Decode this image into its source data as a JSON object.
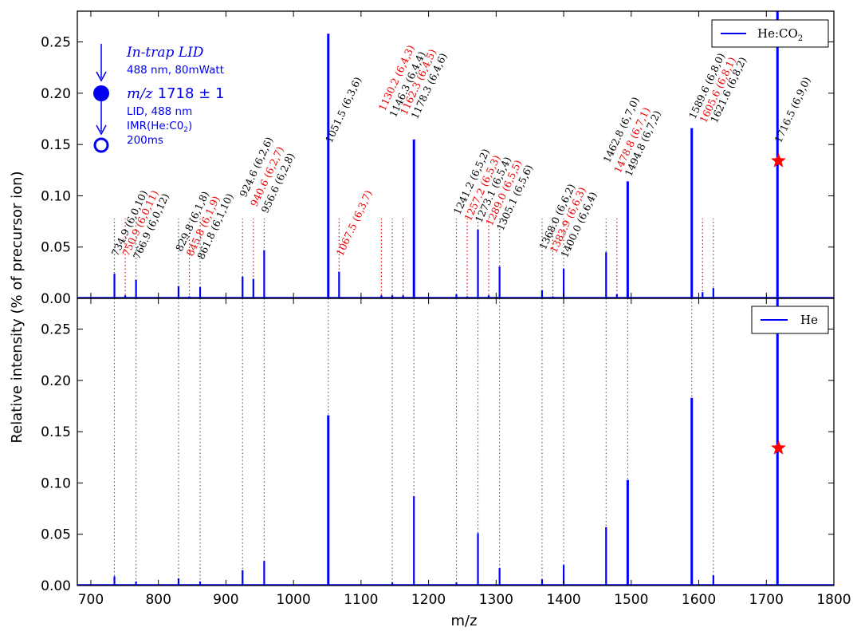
{
  "chart_data": {
    "type": "line",
    "xlabel": "m/z",
    "ylabel": "Relative intensity (% of precursor ion)",
    "xlim": [
      680,
      1800
    ],
    "ylim": [
      0,
      0.28
    ],
    "x_ticks": [
      "700",
      "800",
      "900",
      "1000",
      "1100",
      "1200",
      "1300",
      "1400",
      "1500",
      "1600",
      "1700",
      "1800"
    ],
    "y_ticks": [
      "0.00",
      "0.05",
      "0.10",
      "0.15",
      "0.20",
      "0.25"
    ],
    "colors": {
      "spectrum": "#0000ff",
      "annotation_black": "#000000",
      "annotation_red": "#ee0000",
      "marker": "#ff0000"
    },
    "inset": {
      "line1": "In-trap LID",
      "line2": "488 nm, 80mWatt",
      "line3_italic": "m/z",
      "line3_rest": "1718 ± 1",
      "line4": "LID, 488 nm",
      "line5": "IMR(He:C0",
      "line5_sub": "2",
      "line5_end": ")",
      "line6": "200ms"
    },
    "panels": [
      {
        "name": "top",
        "legend": {
          "label": "He:CO",
          "sub": "2",
          "placement": "top-right"
        },
        "star": {
          "x": 1718,
          "y": 0.134
        },
        "peaks": [
          {
            "x": 734.9,
            "y": 0.024
          },
          {
            "x": 750.9,
            "y": 0.003
          },
          {
            "x": 766.9,
            "y": 0.018
          },
          {
            "x": 829.8,
            "y": 0.012
          },
          {
            "x": 845.8,
            "y": 0.002
          },
          {
            "x": 861.8,
            "y": 0.011
          },
          {
            "x": 924.6,
            "y": 0.021
          },
          {
            "x": 940.6,
            "y": 0.019
          },
          {
            "x": 956.6,
            "y": 0.047
          },
          {
            "x": 1051.5,
            "y": 0.258
          },
          {
            "x": 1067.5,
            "y": 0.026
          },
          {
            "x": 1130.2,
            "y": 0.003
          },
          {
            "x": 1146.3,
            "y": 0.003
          },
          {
            "x": 1162.3,
            "y": 0.003
          },
          {
            "x": 1178.3,
            "y": 0.155
          },
          {
            "x": 1241.2,
            "y": 0.004
          },
          {
            "x": 1257.2,
            "y": 0.002
          },
          {
            "x": 1273.1,
            "y": 0.067
          },
          {
            "x": 1289.0,
            "y": 0.003
          },
          {
            "x": 1305.1,
            "y": 0.031
          },
          {
            "x": 1368.0,
            "y": 0.008
          },
          {
            "x": 1383.9,
            "y": 0.002
          },
          {
            "x": 1400.0,
            "y": 0.029
          },
          {
            "x": 1462.8,
            "y": 0.045
          },
          {
            "x": 1478.8,
            "y": 0.004
          },
          {
            "x": 1494.8,
            "y": 0.114
          },
          {
            "x": 1589.6,
            "y": 0.166
          },
          {
            "x": 1605.6,
            "y": 0.006
          },
          {
            "x": 1621.6,
            "y": 0.01
          },
          {
            "x": 1716.5,
            "y": 0.28
          }
        ],
        "annotations": [
          {
            "x": 734.9,
            "text": "734.9 (6,0,10)",
            "color": "black"
          },
          {
            "x": 750.9,
            "text": "750.9 (6,0,11)",
            "color": "red"
          },
          {
            "x": 766.9,
            "text": "766.9 (6,0,12)",
            "color": "black"
          },
          {
            "x": 829.8,
            "text": "829.8 (6,1,8)",
            "color": "black"
          },
          {
            "x": 845.8,
            "text": "845.8 (6,1,9)",
            "color": "red"
          },
          {
            "x": 861.8,
            "text": "861.8 (6,1,10)",
            "color": "black"
          },
          {
            "x": 924.6,
            "text": "924.6 (6,2,6)",
            "color": "black"
          },
          {
            "x": 940.6,
            "text": "940.6 (6,2,7)",
            "color": "red"
          },
          {
            "x": 956.6,
            "text": "956.6 (6,2,8)",
            "color": "black"
          },
          {
            "x": 1051.5,
            "text": "1051.5  (6,3,6)",
            "color": "black"
          },
          {
            "x": 1067.5,
            "text": "1067.5 (6,3,7)",
            "color": "red"
          },
          {
            "x": 1130.2,
            "text": "1130.2 (6,4,3)",
            "color": "red"
          },
          {
            "x": 1146.3,
            "text": "1146.3 (6,4,4)",
            "color": "black"
          },
          {
            "x": 1162.3,
            "text": "1162.3 (6,4,5)",
            "color": "red"
          },
          {
            "x": 1178.3,
            "text": "1178.3 (6,4,6)",
            "color": "black"
          },
          {
            "x": 1241.2,
            "text": "1241.2 (6,5,2)",
            "color": "black"
          },
          {
            "x": 1257.2,
            "text": "1257.2 (6,5,3)",
            "color": "red"
          },
          {
            "x": 1273.1,
            "text": "1273.1 (6,5,4)",
            "color": "black"
          },
          {
            "x": 1289.0,
            "text": "1289.0 (6,5,5)",
            "color": "red"
          },
          {
            "x": 1305.1,
            "text": "1305.1 (6,5,6)",
            "color": "black"
          },
          {
            "x": 1368.0,
            "text": "1368.0 (6,6,2)",
            "color": "black"
          },
          {
            "x": 1383.9,
            "text": "1383.9 (6,6,3)",
            "color": "red"
          },
          {
            "x": 1400.0,
            "text": "1400.0 (6,6,4)",
            "color": "black"
          },
          {
            "x": 1462.8,
            "text": "1462.8 (6,7,0)",
            "color": "black"
          },
          {
            "x": 1478.8,
            "text": "1478.8 (6,7,1)",
            "color": "red"
          },
          {
            "x": 1494.8,
            "text": "1494.8 (6,7,2)",
            "color": "black"
          },
          {
            "x": 1589.6,
            "text": "1589.6 (6,8,0)",
            "color": "black"
          },
          {
            "x": 1605.6,
            "text": "1605.6 (6,8,1)",
            "color": "red"
          },
          {
            "x": 1621.6,
            "text": "1621.6 (6,8,2)",
            "color": "black"
          },
          {
            "x": 1716.5,
            "text": "1716.5  (6,9,0)",
            "color": "black"
          }
        ]
      },
      {
        "name": "bottom",
        "legend": {
          "label": "He",
          "sub": "",
          "placement": "top-right"
        },
        "star": {
          "x": 1718,
          "y": 0.134
        },
        "peaks": [
          {
            "x": 734.9,
            "y": 0.009
          },
          {
            "x": 766.9,
            "y": 0.004
          },
          {
            "x": 829.8,
            "y": 0.007
          },
          {
            "x": 861.8,
            "y": 0.004
          },
          {
            "x": 924.6,
            "y": 0.015
          },
          {
            "x": 956.6,
            "y": 0.024
          },
          {
            "x": 1051.5,
            "y": 0.166
          },
          {
            "x": 1146.3,
            "y": 0.003
          },
          {
            "x": 1178.3,
            "y": 0.087
          },
          {
            "x": 1241.2,
            "y": 0.003
          },
          {
            "x": 1273.1,
            "y": 0.051
          },
          {
            "x": 1305.1,
            "y": 0.017
          },
          {
            "x": 1368.0,
            "y": 0.006
          },
          {
            "x": 1400.0,
            "y": 0.02
          },
          {
            "x": 1462.8,
            "y": 0.057
          },
          {
            "x": 1494.8,
            "y": 0.103
          },
          {
            "x": 1589.6,
            "y": 0.183
          },
          {
            "x": 1621.6,
            "y": 0.01
          },
          {
            "x": 1716.5,
            "y": 0.28
          }
        ]
      }
    ]
  }
}
